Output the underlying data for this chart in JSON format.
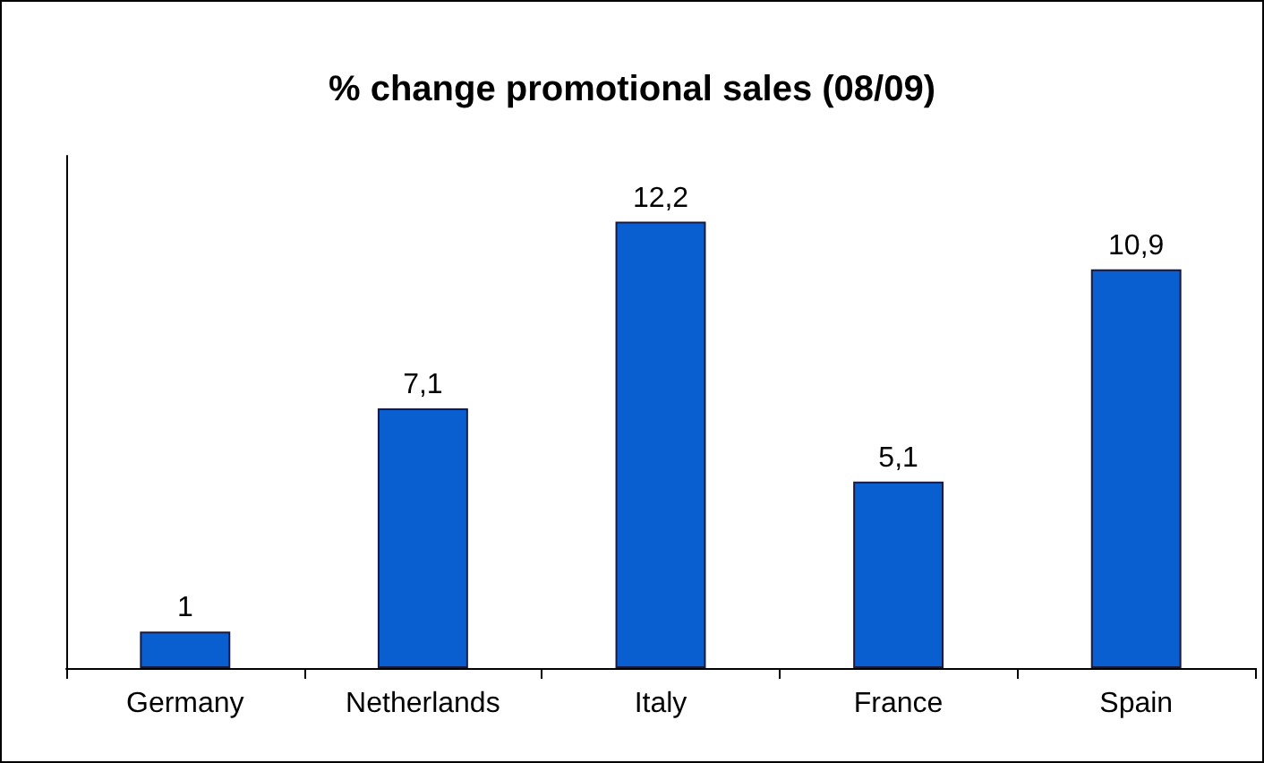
{
  "chart_data": {
    "type": "bar",
    "title": "% change promotional sales (08/09)",
    "categories": [
      "Germany",
      "Netherlands",
      "Italy",
      "France",
      "Spain"
    ],
    "values": [
      1,
      7.1,
      12.2,
      5.1,
      10.9
    ],
    "value_labels": [
      "1",
      "7,1",
      "12,2",
      "5,1",
      "10,9"
    ],
    "color": "#0a5fd0",
    "ylim": [
      0,
      14
    ],
    "tick_labels": "x",
    "grid": false
  }
}
